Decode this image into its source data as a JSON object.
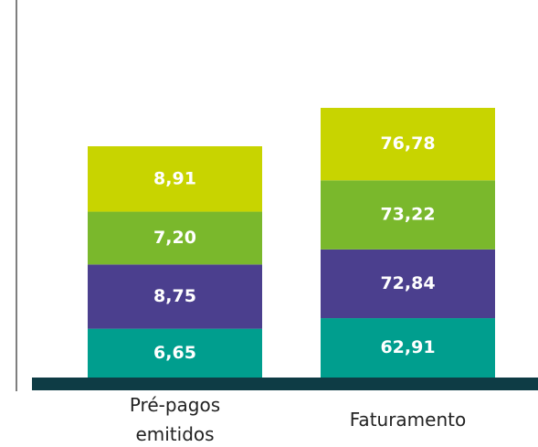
{
  "chart_data": {
    "type": "stacked_bar",
    "categories": [
      "Pré-pagos emitidos",
      "Faturamento"
    ],
    "series": [
      {
        "color": "#009e8e",
        "values": [
          6.65,
          62.91
        ],
        "value_labels": [
          "6,65",
          "62,91"
        ]
      },
      {
        "color": "#4b3f8e",
        "values": [
          8.75,
          72.84
        ],
        "value_labels": [
          "8,75",
          "72,84"
        ]
      },
      {
        "color": "#7ab82c",
        "values": [
          7.2,
          73.22
        ],
        "value_labels": [
          "7,20",
          "73,22"
        ]
      },
      {
        "color": "#c8d400",
        "values": [
          8.91,
          76.78
        ],
        "value_labels": [
          "8,91",
          "76,78"
        ]
      }
    ]
  }
}
